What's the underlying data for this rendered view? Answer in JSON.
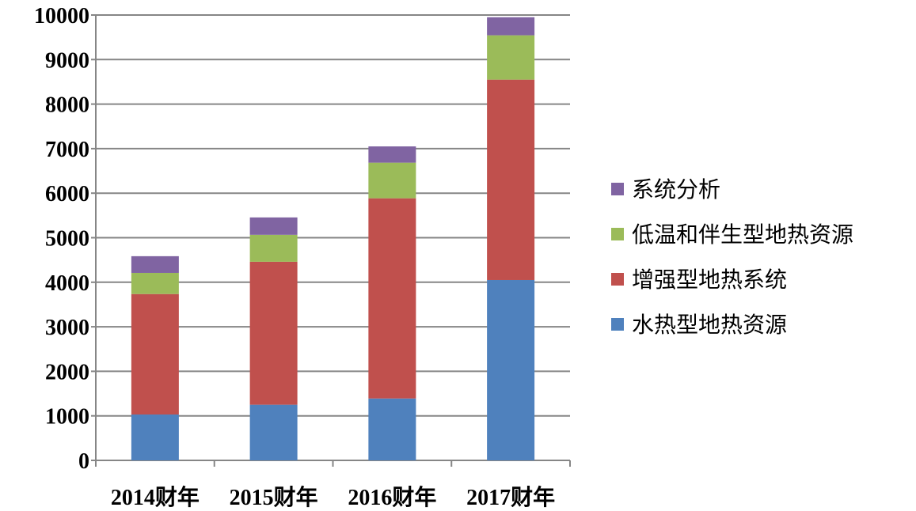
{
  "chart_data": {
    "type": "bar",
    "stacked": true,
    "title": "",
    "xlabel": "",
    "ylabel": "",
    "categories": [
      "2014财年",
      "2015财年",
      "2016财年",
      "2017财年"
    ],
    "ylim": [
      0,
      10000
    ],
    "yticks": [
      0,
      1000,
      2000,
      3000,
      4000,
      5000,
      6000,
      7000,
      8000,
      9000,
      10000
    ],
    "grid": true,
    "legend_position": "right",
    "series": [
      {
        "name": "水热型地热资源",
        "color": "#4f81bd",
        "values": [
          1030,
          1250,
          1390,
          4050
        ]
      },
      {
        "name": "增强型地热系统",
        "color": "#c0504d",
        "values": [
          2705,
          3210,
          4495,
          4500
        ]
      },
      {
        "name": "低温和伴生型地热资源",
        "color": "#9bbb59",
        "values": [
          475,
          605,
          800,
          995
        ]
      },
      {
        "name": "系统分析",
        "color": "#8064a2",
        "values": [
          375,
          390,
          365,
          405
        ]
      }
    ]
  }
}
